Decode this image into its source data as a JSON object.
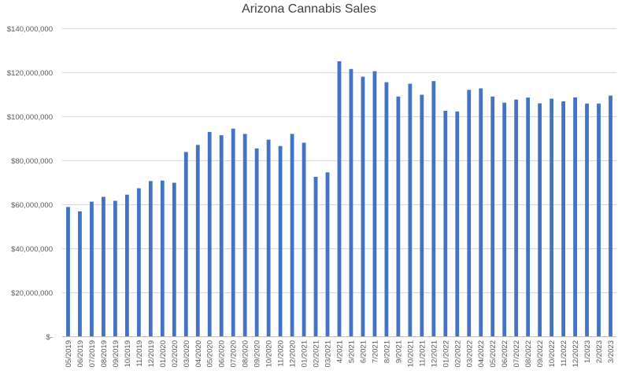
{
  "chart_data": {
    "type": "bar",
    "title": "Arizona Cannabis Sales",
    "xlabel": "",
    "ylabel": "",
    "ylim": [
      0,
      140000000
    ],
    "yticks": [
      {
        "value": 0,
        "label": "$-"
      },
      {
        "value": 20000000,
        "label": "$20,000,000"
      },
      {
        "value": 40000000,
        "label": "$40,000,000"
      },
      {
        "value": 60000000,
        "label": "$60,000,000"
      },
      {
        "value": 80000000,
        "label": "$80,000,000"
      },
      {
        "value": 100000000,
        "label": "$100,000,000"
      },
      {
        "value": 120000000,
        "label": "$120,000,000"
      },
      {
        "value": 140000000,
        "label": "$140,000,000"
      }
    ],
    "grid": true,
    "bar_color": "#4472C4",
    "categories": [
      "05/2019",
      "06/2019",
      "07/2019",
      "08/2019",
      "09/2019",
      "10/2019",
      "11/2019",
      "12/2019",
      "01/2020",
      "02/2020",
      "03/2020",
      "04/2020",
      "05/2020",
      "06/2020",
      "07/2020",
      "08/2020",
      "09/2020",
      "10/2020",
      "11/2020",
      "12/2020",
      "01/2021",
      "02/2021",
      "03/2021",
      "4/2021",
      "5/2021",
      "6/2021",
      "7/2021",
      "8/2021",
      "9/2021",
      "10/2021",
      "11/2021",
      "12/2021",
      "01/2022",
      "02/2022",
      "03/2022",
      "04/2022",
      "05/2022",
      "06/2022",
      "07/2022",
      "08/2022",
      "09/2022",
      "10/2022",
      "11/2022",
      "12/2022",
      "1/2023",
      "2/2023",
      "3/2023"
    ],
    "values": [
      58800000,
      56800000,
      61200000,
      63400000,
      61600000,
      64400000,
      67300000,
      70600000,
      70800000,
      69800000,
      83800000,
      87000000,
      92900000,
      91400000,
      94400000,
      92000000,
      85400000,
      89400000,
      86500000,
      92000000,
      88000000,
      72500000,
      74500000,
      125000000,
      121500000,
      118000000,
      120500000,
      115500000,
      109000000,
      114800000,
      109800000,
      116000000,
      102500000,
      102200000,
      112000000,
      112700000,
      109000000,
      106200000,
      107600000,
      108500000,
      105900000,
      108000000,
      106800000,
      108600000,
      105800000,
      105800000,
      109400000
    ]
  }
}
